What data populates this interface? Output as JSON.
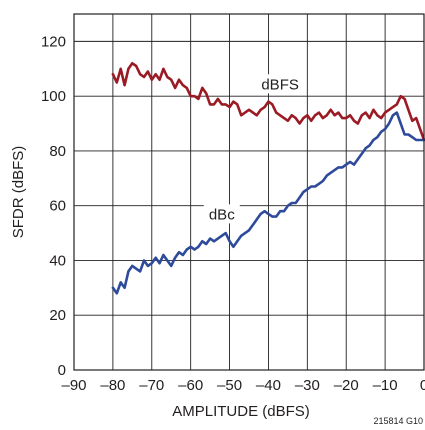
{
  "chart_data": {
    "type": "line",
    "title": "",
    "xlabel": "AMPLITUDE (dBFS)",
    "ylabel": "SFDR (dBFS)",
    "xlim": [
      -90,
      0
    ],
    "ylim": [
      0,
      130
    ],
    "xticks": [
      -90,
      -80,
      -70,
      -60,
      -50,
      -40,
      -30,
      -20,
      -10,
      0
    ],
    "xtick_labels": [
      "–90",
      "–80",
      "–70",
      "–60",
      "–50",
      "–40",
      "–30",
      "–20",
      "–10",
      "0"
    ],
    "yticks": [
      0,
      20,
      40,
      60,
      80,
      100,
      120
    ],
    "ytick_labels": [
      "0",
      "20",
      "40",
      "60",
      "80",
      "100",
      "120"
    ],
    "grid": true,
    "legend": "none (inline series labels)",
    "figure_id": "215814 G10",
    "series": [
      {
        "name": "dBFS",
        "color": "#9b1b25",
        "x": [
          -80,
          -79,
          -78,
          -77,
          -76,
          -75,
          -74,
          -73,
          -72,
          -71,
          -70,
          -69,
          -68,
          -67,
          -66,
          -65,
          -64,
          -63,
          -62,
          -61,
          -60,
          -59,
          -58,
          -57,
          -56,
          -55,
          -54,
          -53,
          -52,
          -51,
          -50,
          -49,
          -48,
          -47,
          -46,
          -45,
          -44,
          -43,
          -42,
          -41,
          -40,
          -39,
          -38,
          -37,
          -36,
          -35,
          -34,
          -33,
          -32,
          -31,
          -30,
          -29,
          -28,
          -27,
          -26,
          -25,
          -24,
          -23,
          -22,
          -21,
          -20,
          -19,
          -18,
          -17,
          -16,
          -15,
          -14,
          -13,
          -12,
          -11,
          -10,
          -9,
          -8,
          -7,
          -6,
          -5,
          -4,
          -3,
          -2,
          -1,
          0
        ],
        "y": [
          108,
          105,
          110,
          104,
          110,
          112,
          111,
          108,
          107,
          109,
          106,
          108,
          106,
          110,
          107,
          106,
          103,
          106,
          104,
          103,
          100,
          100,
          99,
          103,
          101,
          97,
          97,
          99,
          97,
          97,
          96,
          98,
          97,
          93,
          94,
          95,
          94,
          93,
          95,
          96,
          98,
          97,
          94,
          93,
          92,
          91,
          93,
          92,
          90,
          92,
          93,
          91,
          93,
          94,
          92,
          93,
          95,
          93,
          94,
          92,
          92,
          93,
          91,
          90,
          93,
          94,
          92,
          95,
          93,
          92,
          94,
          95,
          96,
          97,
          100,
          99,
          95,
          91,
          92,
          88,
          84
        ]
      },
      {
        "name": "dBc",
        "color": "#2e4a9a",
        "x": [
          -80,
          -79,
          -78,
          -77,
          -76,
          -75,
          -74,
          -73,
          -72,
          -71,
          -70,
          -69,
          -68,
          -67,
          -66,
          -65,
          -64,
          -63,
          -62,
          -61,
          -60,
          -59,
          -58,
          -57,
          -56,
          -55,
          -54,
          -53,
          -52,
          -51,
          -50,
          -49,
          -48,
          -47,
          -46,
          -45,
          -44,
          -43,
          -42,
          -41,
          -40,
          -39,
          -38,
          -37,
          -36,
          -35,
          -34,
          -33,
          -32,
          -31,
          -30,
          -29,
          -28,
          -27,
          -26,
          -25,
          -24,
          -23,
          -22,
          -21,
          -20,
          -19,
          -18,
          -17,
          -16,
          -15,
          -14,
          -13,
          -12,
          -11,
          -10,
          -9,
          -8,
          -7,
          -6,
          -5,
          -4,
          -3,
          -2,
          -1,
          0
        ],
        "y": [
          30,
          28,
          32,
          30,
          36,
          38,
          37,
          36,
          40,
          38,
          39,
          41,
          39,
          42,
          40,
          38,
          41,
          43,
          42,
          44,
          45,
          44,
          45,
          47,
          46,
          48,
          47,
          48,
          49,
          50,
          47,
          45,
          47,
          49,
          50,
          51,
          53,
          55,
          57,
          58,
          57,
          56,
          56,
          58,
          58,
          60,
          61,
          61,
          63,
          65,
          66,
          67,
          67,
          68,
          69,
          71,
          72,
          73,
          74,
          74,
          75,
          76,
          75,
          77,
          79,
          81,
          82,
          84,
          85,
          87,
          88,
          90,
          93,
          94,
          90,
          86,
          86,
          85,
          84,
          84,
          84
        ]
      }
    ]
  }
}
